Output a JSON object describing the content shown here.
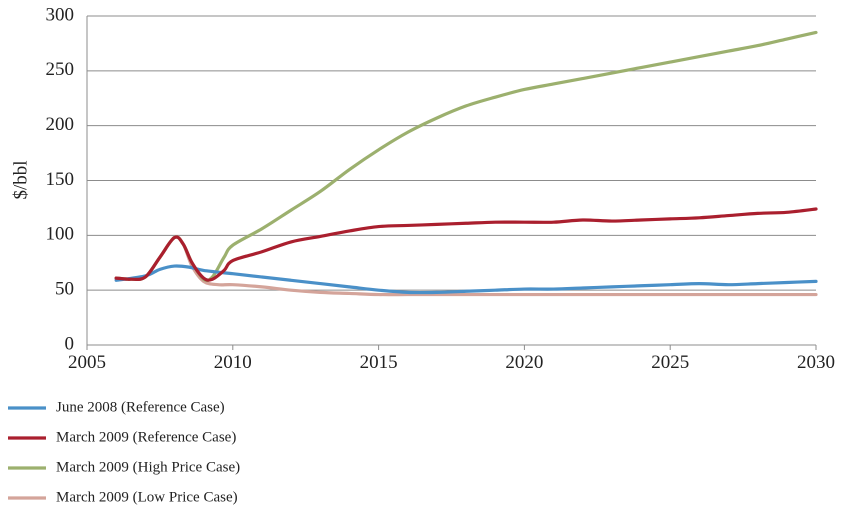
{
  "chart_data": {
    "type": "line",
    "title": "",
    "xlabel": "",
    "ylabel": "$/bbl",
    "xlim": [
      2005,
      2030
    ],
    "ylim": [
      0,
      300
    ],
    "x_ticks": [
      2005,
      2010,
      2015,
      2020,
      2025,
      2030
    ],
    "y_ticks": [
      0,
      50,
      100,
      150,
      200,
      250,
      300
    ],
    "grid": "horizontal",
    "legend_position": "bottom-left",
    "series": [
      {
        "name": "June 2008 (Reference Case)",
        "color": "#4a90c8",
        "points": [
          [
            2006,
            59
          ],
          [
            2007,
            63
          ],
          [
            2007.5,
            69
          ],
          [
            2008,
            72
          ],
          [
            2008.5,
            71
          ],
          [
            2009,
            68
          ],
          [
            2010,
            65
          ],
          [
            2011,
            62
          ],
          [
            2012,
            59
          ],
          [
            2013,
            56
          ],
          [
            2014,
            53
          ],
          [
            2015,
            50
          ],
          [
            2016,
            48
          ],
          [
            2017,
            48
          ],
          [
            2018,
            49
          ],
          [
            2019,
            50
          ],
          [
            2020,
            51
          ],
          [
            2021,
            51
          ],
          [
            2022,
            52
          ],
          [
            2023,
            53
          ],
          [
            2024,
            54
          ],
          [
            2025,
            55
          ],
          [
            2026,
            56
          ],
          [
            2027,
            55
          ],
          [
            2028,
            56
          ],
          [
            2029,
            57
          ],
          [
            2030,
            58
          ]
        ]
      },
      {
        "name": "March 2009 (Reference Case)",
        "color": "#aa1f2e",
        "points": [
          [
            2006,
            61
          ],
          [
            2006.5,
            60
          ],
          [
            2007,
            62
          ],
          [
            2007.5,
            80
          ],
          [
            2008,
            98
          ],
          [
            2008.3,
            92
          ],
          [
            2008.6,
            75
          ],
          [
            2009,
            61
          ],
          [
            2009.3,
            60
          ],
          [
            2009.7,
            68
          ],
          [
            2010,
            77
          ],
          [
            2011,
            85
          ],
          [
            2012,
            94
          ],
          [
            2013,
            99
          ],
          [
            2014,
            104
          ],
          [
            2015,
            108
          ],
          [
            2016,
            109
          ],
          [
            2017,
            110
          ],
          [
            2018,
            111
          ],
          [
            2019,
            112
          ],
          [
            2020,
            112
          ],
          [
            2021,
            112
          ],
          [
            2022,
            114
          ],
          [
            2023,
            113
          ],
          [
            2024,
            114
          ],
          [
            2025,
            115
          ],
          [
            2026,
            116
          ],
          [
            2027,
            118
          ],
          [
            2028,
            120
          ],
          [
            2029,
            121
          ],
          [
            2030,
            124
          ]
        ]
      },
      {
        "name": "March 2009 (High Price Case)",
        "color": "#9cb06e",
        "points": [
          [
            2006,
            61
          ],
          [
            2006.5,
            60
          ],
          [
            2007,
            62
          ],
          [
            2007.5,
            80
          ],
          [
            2008,
            98
          ],
          [
            2008.3,
            92
          ],
          [
            2008.6,
            75
          ],
          [
            2009,
            60
          ],
          [
            2009.3,
            62
          ],
          [
            2009.7,
            80
          ],
          [
            2010,
            91
          ],
          [
            2011,
            106
          ],
          [
            2012,
            123
          ],
          [
            2013,
            140
          ],
          [
            2014,
            160
          ],
          [
            2015,
            178
          ],
          [
            2016,
            194
          ],
          [
            2017,
            207
          ],
          [
            2018,
            218
          ],
          [
            2019,
            226
          ],
          [
            2020,
            233
          ],
          [
            2021,
            238
          ],
          [
            2022,
            243
          ],
          [
            2023,
            248
          ],
          [
            2024,
            253
          ],
          [
            2025,
            258
          ],
          [
            2026,
            263
          ],
          [
            2027,
            268
          ],
          [
            2028,
            273
          ],
          [
            2029,
            279
          ],
          [
            2030,
            285
          ]
        ]
      },
      {
        "name": "March 2009 (Low Price Case)",
        "color": "#d4a49a",
        "points": [
          [
            2006,
            61
          ],
          [
            2006.5,
            60
          ],
          [
            2007,
            62
          ],
          [
            2007.5,
            80
          ],
          [
            2008,
            98
          ],
          [
            2008.3,
            92
          ],
          [
            2008.6,
            72
          ],
          [
            2009,
            58
          ],
          [
            2009.5,
            55
          ],
          [
            2010,
            55
          ],
          [
            2011,
            53
          ],
          [
            2012,
            50
          ],
          [
            2013,
            48
          ],
          [
            2014,
            47
          ],
          [
            2015,
            46
          ],
          [
            2016,
            46
          ],
          [
            2017,
            46
          ],
          [
            2018,
            46
          ],
          [
            2019,
            46
          ],
          [
            2020,
            46
          ],
          [
            2021,
            46
          ],
          [
            2022,
            46
          ],
          [
            2023,
            46
          ],
          [
            2024,
            46
          ],
          [
            2025,
            46
          ],
          [
            2026,
            46
          ],
          [
            2027,
            46
          ],
          [
            2028,
            46
          ],
          [
            2029,
            46
          ],
          [
            2030,
            46
          ]
        ]
      }
    ]
  }
}
